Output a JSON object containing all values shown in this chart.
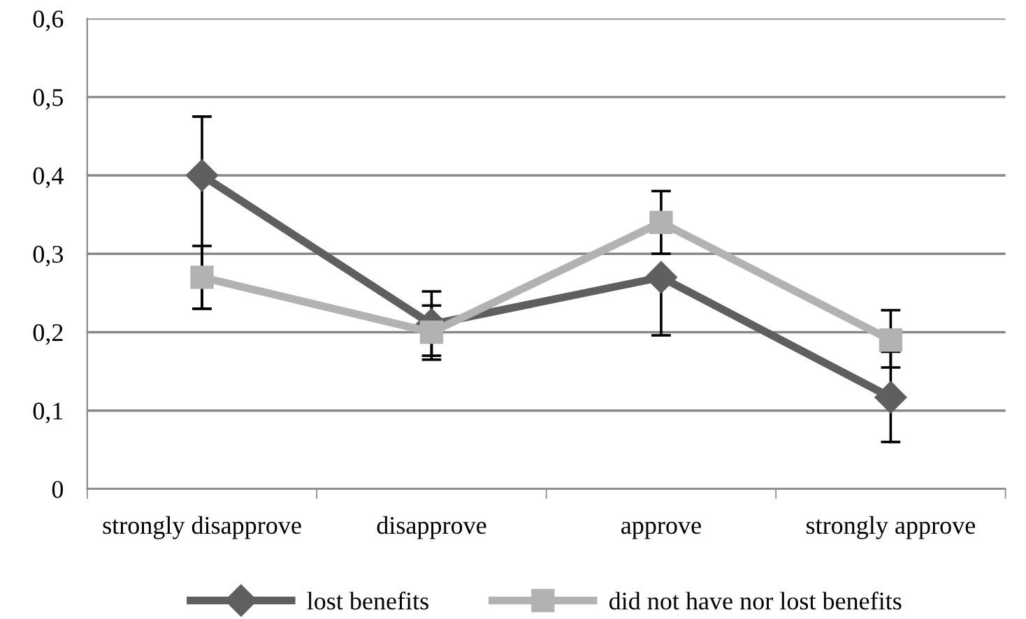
{
  "chart_data": {
    "type": "line",
    "categories": [
      "strongly disapprove",
      "disapprove",
      "approve",
      "strongly approve"
    ],
    "series": [
      {
        "name": "lost benefits",
        "color": "#5f5f5f",
        "marker": "diamond",
        "values": [
          0.4,
          0.21,
          0.27,
          0.117
        ],
        "errors": [
          [
            0.23,
            0.475
          ],
          [
            0.17,
            0.252
          ],
          [
            0.196,
            0.27
          ],
          [
            0.06,
            0.175
          ]
        ]
      },
      {
        "name": "did not have nor lost benefits",
        "color": "#b2b2b2",
        "marker": "square",
        "values": [
          0.27,
          0.2,
          0.34,
          0.19
        ],
        "errors": [
          [
            0.23,
            0.31
          ],
          [
            0.165,
            0.234
          ],
          [
            0.3,
            0.38
          ],
          [
            0.155,
            0.228
          ]
        ]
      }
    ],
    "ylim": [
      0,
      0.6
    ],
    "yticks": [
      {
        "value": 0,
        "label": "0"
      },
      {
        "value": 0.1,
        "label": "0,1"
      },
      {
        "value": 0.2,
        "label": "0,2"
      },
      {
        "value": 0.3,
        "label": "0,3"
      },
      {
        "value": 0.4,
        "label": "0,4"
      },
      {
        "value": 0.5,
        "label": "0,5"
      },
      {
        "value": 0.6,
        "label": "0,6"
      }
    ],
    "grid": "y",
    "legend": "bottom"
  }
}
